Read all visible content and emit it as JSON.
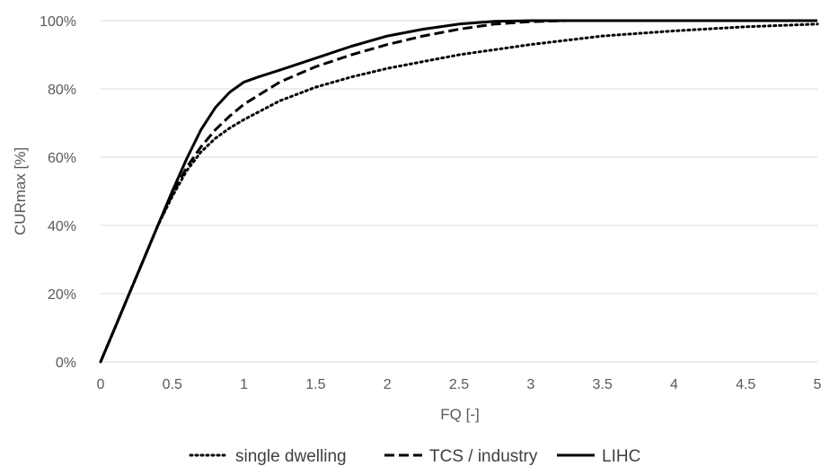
{
  "chart_data": {
    "type": "line",
    "title": "",
    "xlabel": "FQ [-]",
    "ylabel": "CURmax [%]",
    "xlim": [
      0,
      5
    ],
    "ylim": [
      0,
      100
    ],
    "x_ticks": [
      "0",
      "0.5",
      "1",
      "1.5",
      "2",
      "2.5",
      "3",
      "3.5",
      "4",
      "4.5",
      "5"
    ],
    "y_ticks": [
      "0%",
      "20%",
      "40%",
      "60%",
      "80%",
      "100%"
    ],
    "grid": "horizontal",
    "legend_position": "bottom",
    "series": [
      {
        "name": "single dwelling",
        "line_style": "dotted",
        "color": "#000000",
        "x": [
          0,
          0.1,
          0.2,
          0.3,
          0.4,
          0.5,
          0.6,
          0.7,
          0.8,
          0.9,
          1.0,
          1.25,
          1.5,
          1.75,
          2.0,
          2.5,
          3.0,
          3.5,
          4.0,
          4.5,
          5.0
        ],
        "y": [
          0,
          10,
          20,
          30,
          40,
          48.5,
          56,
          61.5,
          65.5,
          68.5,
          71,
          76.5,
          80.5,
          83.5,
          86,
          90,
          93,
          95.5,
          97,
          98.2,
          99
        ]
      },
      {
        "name": "TCS / industry",
        "line_style": "dashed",
        "color": "#000000",
        "x": [
          0,
          0.1,
          0.2,
          0.3,
          0.4,
          0.5,
          0.6,
          0.7,
          0.8,
          0.9,
          1.0,
          1.25,
          1.5,
          1.75,
          2.0,
          2.25,
          2.5,
          2.75,
          3.0,
          3.25,
          3.5,
          4.0,
          4.5,
          5.0
        ],
        "y": [
          0,
          10,
          20,
          30,
          40,
          49,
          57,
          63,
          68,
          72,
          75.5,
          82,
          86.5,
          90,
          93,
          95.5,
          97.5,
          99,
          99.7,
          100,
          100,
          100,
          100,
          100
        ]
      },
      {
        "name": "LIHC",
        "line_style": "solid",
        "color": "#000000",
        "x": [
          0,
          0.1,
          0.2,
          0.3,
          0.4,
          0.5,
          0.6,
          0.7,
          0.8,
          0.9,
          1.0,
          1.1,
          1.25,
          1.5,
          1.75,
          2.0,
          2.25,
          2.5,
          2.75,
          3.0,
          3.5,
          4.0,
          4.5,
          5.0
        ],
        "y": [
          0,
          10,
          20,
          30,
          40,
          50,
          59.5,
          68,
          74.5,
          79,
          82,
          83.5,
          85.5,
          89,
          92.5,
          95.5,
          97.5,
          99,
          99.8,
          100,
          100,
          100,
          100,
          100
        ]
      }
    ]
  }
}
